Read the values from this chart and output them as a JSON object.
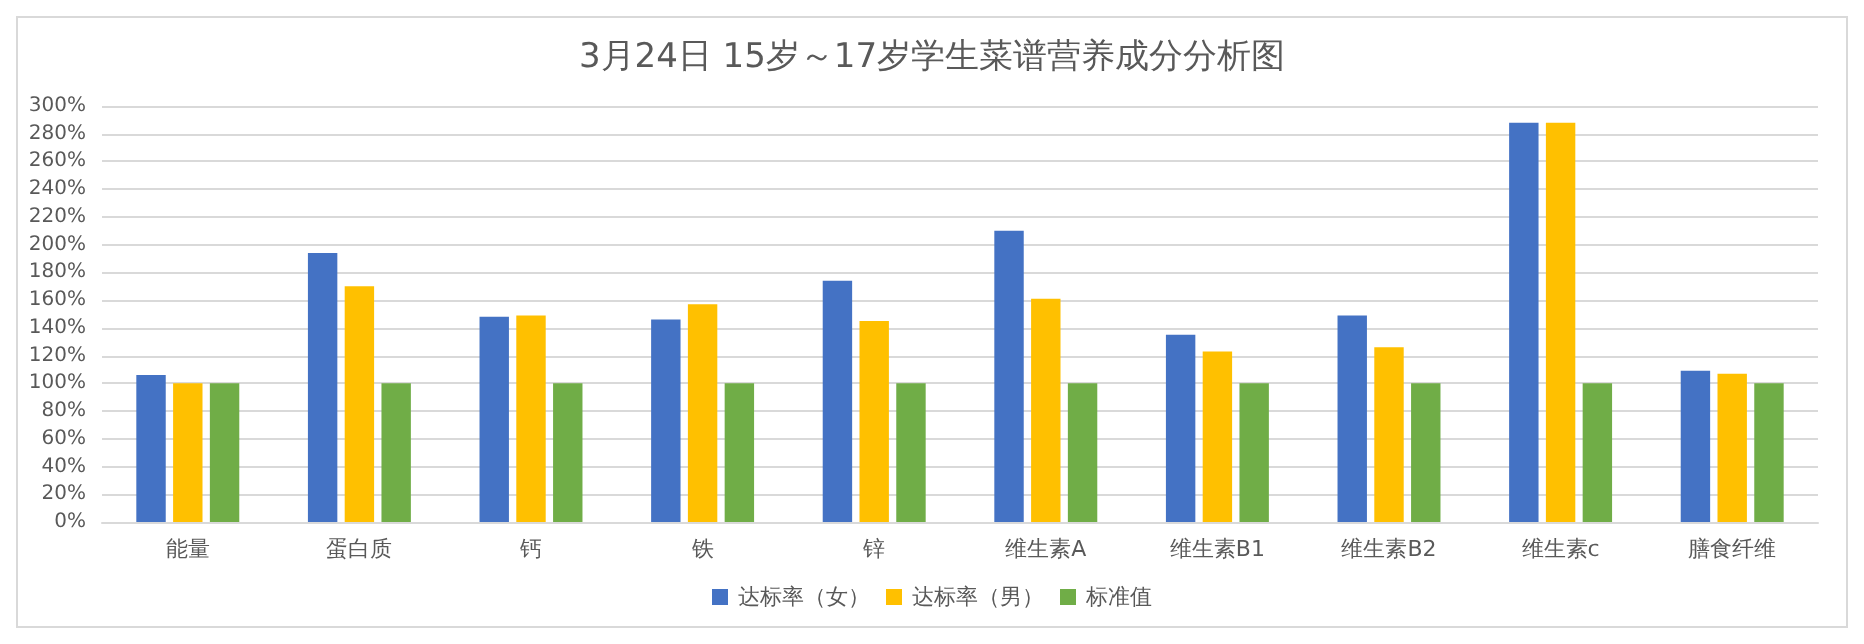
{
  "chart_data": {
    "type": "bar",
    "title": "3月24日 15岁～17岁学生菜谱营养成分分析图",
    "categories": [
      "能量",
      "蛋白质",
      "钙",
      "铁",
      "锌",
      "维生素A",
      "维生素B1",
      "维生素B2",
      "维生素c",
      "膳食纤维"
    ],
    "series": [
      {
        "name": "达标率（女）",
        "color": "#4472c4",
        "values": [
          106,
          194,
          148,
          146,
          174,
          210,
          135,
          149,
          288,
          109
        ]
      },
      {
        "name": "达标率（男）",
        "color": "#ffc000",
        "values": [
          100,
          170,
          149,
          157,
          145,
          161,
          123,
          126,
          288,
          107
        ]
      },
      {
        "name": "标准值",
        "color": "#70ad47",
        "values": [
          100,
          100,
          100,
          100,
          100,
          100,
          100,
          100,
          100,
          100
        ]
      }
    ],
    "ylim": [
      0,
      300
    ],
    "yticks": [
      {
        "value": 0,
        "label": "0%"
      },
      {
        "value": 20,
        "label": "20%"
      },
      {
        "value": 40,
        "label": "40%"
      },
      {
        "value": 60,
        "label": "60%"
      },
      {
        "value": 80,
        "label": "80%"
      },
      {
        "value": 100,
        "label": "100%"
      },
      {
        "value": 120,
        "label": "120%"
      },
      {
        "value": 140,
        "label": "140%"
      },
      {
        "value": 160,
        "label": "160%"
      },
      {
        "value": 180,
        "label": "180%"
      },
      {
        "value": 200,
        "label": "200%"
      },
      {
        "value": 220,
        "label": "220%"
      },
      {
        "value": 240,
        "label": "240%"
      },
      {
        "value": 260,
        "label": "260%"
      },
      {
        "value": 280,
        "label": "280%"
      },
      {
        "value": 300,
        "label": "300%"
      }
    ],
    "grid": "y",
    "legend": "bottom"
  }
}
